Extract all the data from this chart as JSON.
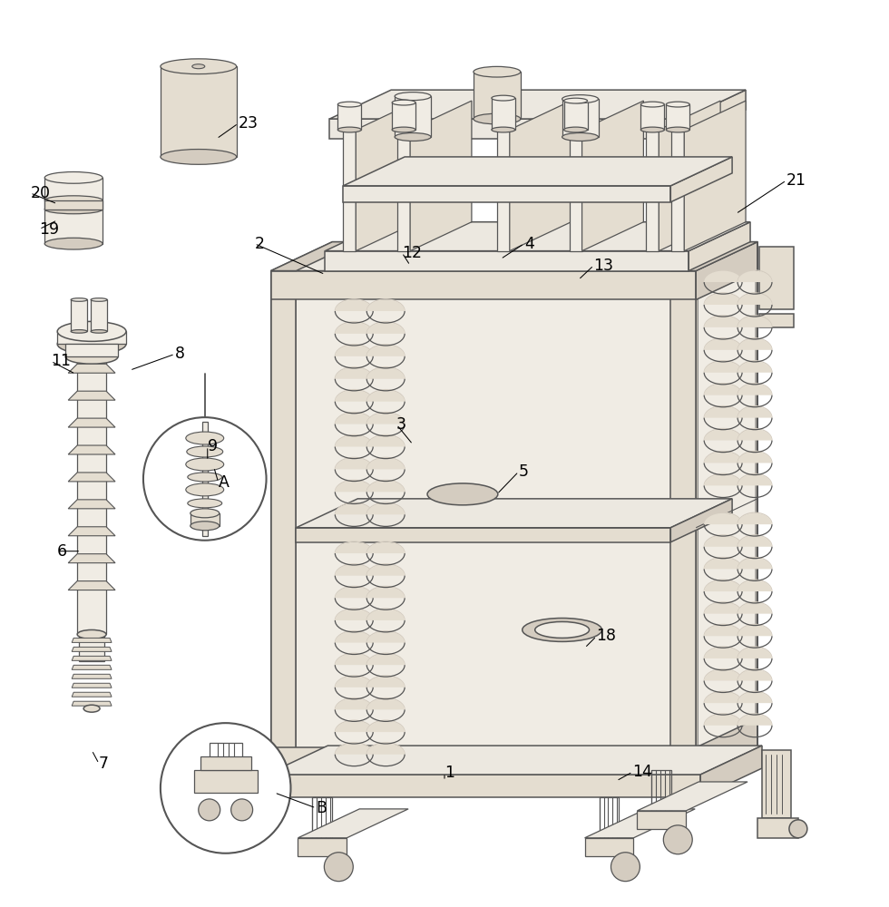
{
  "background_color": "#ffffff",
  "line_color": "#555555",
  "face_color_light": "#f0ece4",
  "face_color_mid": "#e4ddd0",
  "face_color_dark": "#d4ccc0",
  "face_color_top": "#ece8e0",
  "fig_width": 9.8,
  "fig_height": 10.0,
  "labels": [
    [
      "1",
      490,
      853,
      490,
      862,
      "left"
    ],
    [
      "2",
      280,
      268,
      358,
      302,
      "left"
    ],
    [
      "3",
      437,
      468,
      455,
      490,
      "left"
    ],
    [
      "4",
      578,
      268,
      552,
      285,
      "left"
    ],
    [
      "5",
      572,
      520,
      548,
      545,
      "left"
    ],
    [
      "6",
      62,
      608,
      88,
      608,
      "left"
    ],
    [
      "7",
      108,
      843,
      100,
      828,
      "left"
    ],
    [
      "8",
      192,
      390,
      142,
      408,
      "left"
    ],
    [
      "9",
      228,
      492,
      228,
      508,
      "left"
    ],
    [
      "11",
      55,
      398,
      82,
      412,
      "left"
    ],
    [
      "12",
      443,
      278,
      452,
      292,
      "left"
    ],
    [
      "13",
      655,
      292,
      638,
      308,
      "left"
    ],
    [
      "14",
      698,
      852,
      680,
      862,
      "left"
    ],
    [
      "18",
      658,
      702,
      645,
      715,
      "left"
    ],
    [
      "19",
      42,
      252,
      62,
      242,
      "left"
    ],
    [
      "20",
      32,
      212,
      62,
      224,
      "left"
    ],
    [
      "21",
      868,
      198,
      812,
      235,
      "left"
    ],
    [
      "23",
      262,
      135,
      238,
      152,
      "left"
    ],
    [
      "A",
      240,
      532,
      235,
      515,
      "left"
    ],
    [
      "B",
      348,
      892,
      302,
      875,
      "left"
    ]
  ]
}
